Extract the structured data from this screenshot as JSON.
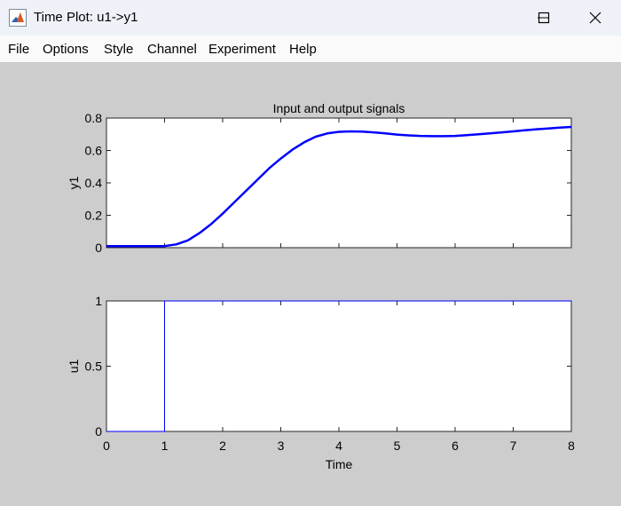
{
  "window": {
    "title": "Time Plot: u1->y1"
  },
  "menu": [
    "File",
    "Options",
    "Style",
    "Channel",
    "Experiment",
    "Help"
  ],
  "icons": {
    "app": "matlab-icon",
    "minimize": "minimize-icon",
    "maximize": "maximize-icon",
    "close": "close-icon"
  },
  "colors": {
    "signal": "#0000ff",
    "figure_background": "#cdcdcd",
    "axes_background": "#ffffff"
  },
  "chart_data": [
    {
      "type": "line",
      "title": "Input and output signals",
      "xlabel": "",
      "ylabel": "y1",
      "xlim": [
        0,
        8
      ],
      "ylim": [
        0,
        0.8
      ],
      "xticks": [
        "0",
        "1",
        "2",
        "3",
        "4",
        "5",
        "6",
        "7",
        "8"
      ],
      "yticks": [
        "0",
        "0.2",
        "0.4",
        "0.6",
        "0.8"
      ],
      "show_xtick_labels": false,
      "grid": false,
      "series": [
        {
          "color": "#0000ff",
          "x": [
            0,
            0.5,
            1.0,
            1.2,
            1.4,
            1.6,
            1.8,
            2.0,
            2.2,
            2.4,
            2.6,
            2.8,
            3.0,
            3.2,
            3.4,
            3.6,
            3.8,
            4.0,
            4.2,
            4.4,
            4.6,
            4.8,
            5.0,
            5.2,
            5.4,
            5.6,
            5.8,
            6.0,
            6.2,
            6.4,
            6.6,
            6.8,
            7.0,
            7.2,
            7.4,
            7.6,
            7.8,
            8.0
          ],
          "y": [
            0.01,
            0.01,
            0.01,
            0.02,
            0.045,
            0.09,
            0.145,
            0.21,
            0.28,
            0.35,
            0.42,
            0.49,
            0.55,
            0.605,
            0.65,
            0.685,
            0.705,
            0.715,
            0.718,
            0.716,
            0.712,
            0.705,
            0.698,
            0.693,
            0.69,
            0.688,
            0.688,
            0.69,
            0.695,
            0.7,
            0.706,
            0.712,
            0.718,
            0.725,
            0.731,
            0.736,
            0.741,
            0.745
          ]
        }
      ]
    },
    {
      "type": "line",
      "title": "",
      "xlabel": "Time",
      "ylabel": "u1",
      "xlim": [
        0,
        8
      ],
      "ylim": [
        0,
        1
      ],
      "xticks": [
        "0",
        "1",
        "2",
        "3",
        "4",
        "5",
        "6",
        "7",
        "8"
      ],
      "yticks": [
        "0",
        "0.5",
        "1"
      ],
      "show_xtick_labels": true,
      "grid": false,
      "series": [
        {
          "color": "#0000ff",
          "x": [
            0,
            1,
            1,
            8
          ],
          "y": [
            0,
            0,
            1,
            1
          ]
        }
      ]
    }
  ]
}
